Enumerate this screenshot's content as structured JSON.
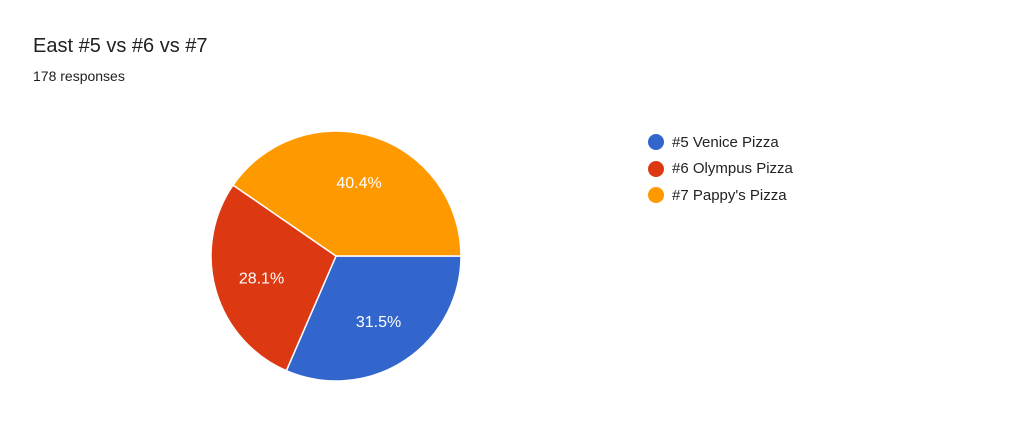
{
  "chart_data": {
    "type": "pie",
    "title": "East #5 vs #6 vs #7",
    "subtitle": "178 responses",
    "categories": [
      "#5 Venice Pizza",
      "#6 Olympus Pizza",
      "#7 Pappy's Pizza"
    ],
    "values": [
      31.5,
      28.1,
      40.4
    ],
    "labels": [
      "31.5%",
      "28.1%",
      "40.4%"
    ],
    "colors": [
      "#3366cc",
      "#dc3912",
      "#ff9900"
    ],
    "legend_position": "right"
  }
}
